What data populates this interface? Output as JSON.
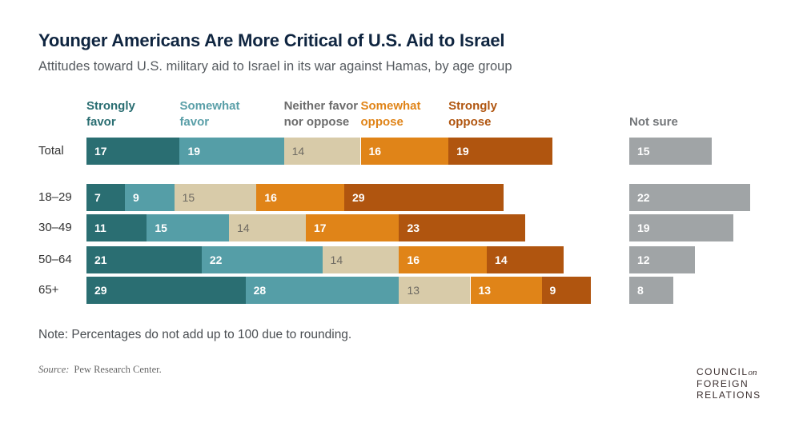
{
  "header": {
    "title": "Younger Americans Are More Critical of U.S. Aid to Israel",
    "subtitle": "Attitudes toward U.S. military aid to Israel in its war against Hamas, by age group"
  },
  "chart_data": {
    "type": "bar",
    "orientation": "horizontal",
    "stacked": true,
    "title": "Younger Americans Are More Critical of U.S. Aid to Israel",
    "subtitle": "Attitudes toward U.S. military aid to Israel in its war against Hamas, by age group",
    "xlabel": "",
    "ylabel": "",
    "units": "percent",
    "categories": [
      "Total",
      "18–29",
      "30–49",
      "50–64",
      "65+"
    ],
    "series": [
      {
        "name": "Strongly favor",
        "legend_lines": [
          "Strongly",
          "favor"
        ],
        "color": "#2a6e72",
        "label_color": "#ffffff",
        "legend_color": "#2a6e72",
        "values": [
          17,
          7,
          11,
          21,
          29
        ]
      },
      {
        "name": "Somewhat favor",
        "legend_lines": [
          "Somewhat",
          "favor"
        ],
        "color": "#559ea7",
        "label_color": "#ffffff",
        "legend_color": "#5a9fa8",
        "values": [
          19,
          9,
          15,
          22,
          28
        ]
      },
      {
        "name": "Neither favor nor oppose",
        "legend_lines": [
          "Neither favor",
          "nor oppose"
        ],
        "color": "#d8cba9",
        "label_color": "#6e6a62",
        "legend_color": "#6c6c6c",
        "values": [
          14,
          15,
          14,
          14,
          13
        ]
      },
      {
        "name": "Somewhat oppose",
        "legend_lines": [
          "Somewhat",
          "oppose"
        ],
        "color": "#e08418",
        "label_color": "#ffffff",
        "legend_color": "#e08418",
        "values": [
          16,
          16,
          17,
          16,
          13
        ]
      },
      {
        "name": "Strongly oppose",
        "legend_lines": [
          "Strongly",
          "oppose"
        ],
        "color": "#b0550f",
        "label_color": "#ffffff",
        "legend_color": "#b0550f",
        "values": [
          19,
          29,
          23,
          14,
          9
        ]
      }
    ],
    "separate_series": {
      "name": "Not sure",
      "color": "#a0a4a6",
      "label_color": "#ffffff",
      "legend_color": "#737679",
      "values": [
        15,
        22,
        19,
        12,
        8
      ]
    },
    "legend_position": "top",
    "grid": false
  },
  "footer": {
    "note": "Note: Percentages do not add up to 100 due to rounding.",
    "source_label": "Source:",
    "source_text": "Pew Research Center.",
    "logo_line1": "COUNCIL",
    "logo_on": "on",
    "logo_line2": "FOREIGN",
    "logo_line3": "RELATIONS"
  }
}
